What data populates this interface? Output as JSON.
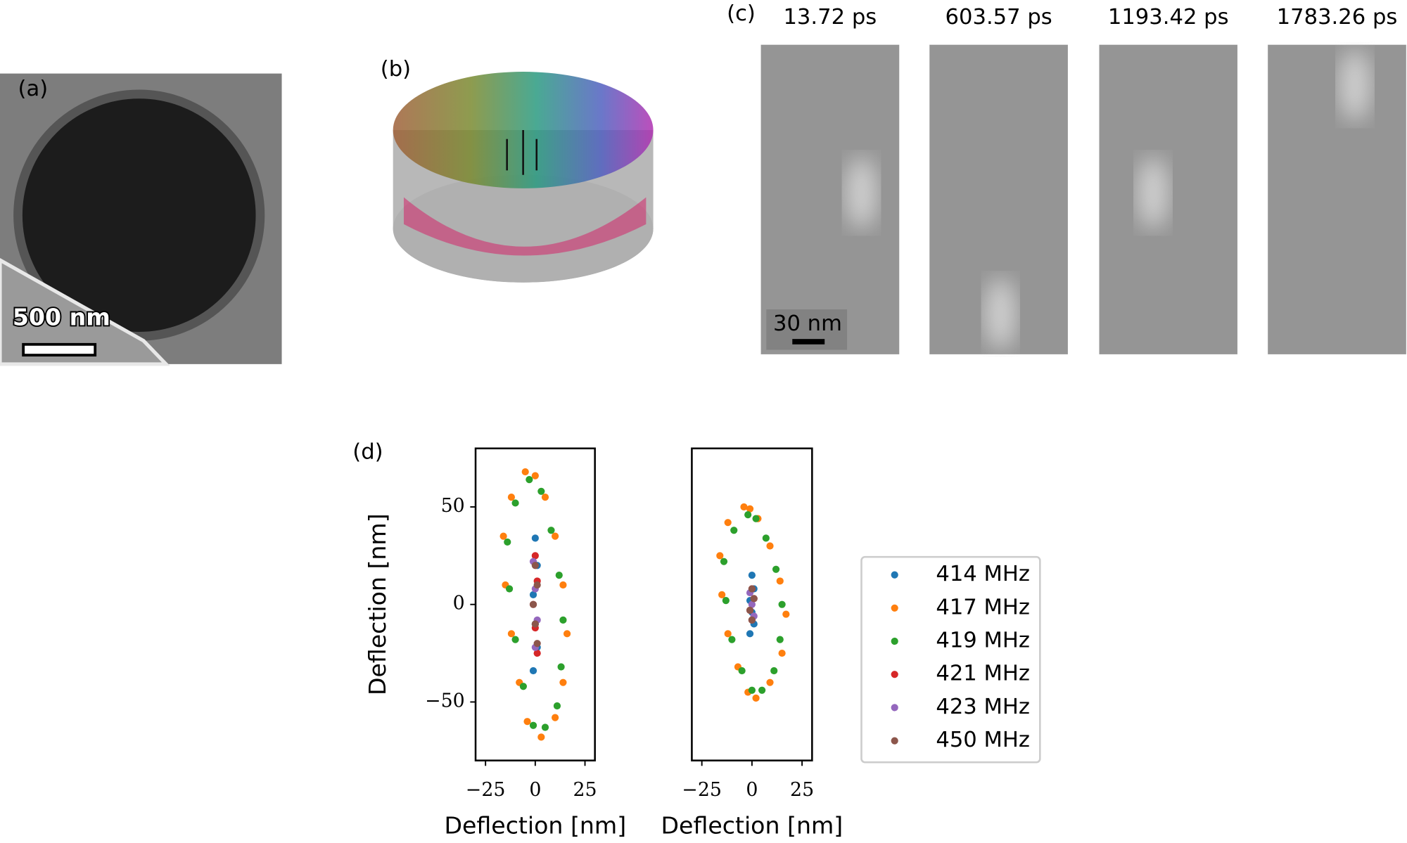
{
  "panels": {
    "a": {
      "label": "(a)",
      "scale_bar": "500 nm"
    },
    "b": {
      "label": "(b)"
    },
    "c": {
      "label": "(c)",
      "times": [
        "13.72 ps",
        "603.57 ps",
        "1193.42 ps",
        "1783.26 ps"
      ],
      "scale_bar": "30 nm"
    },
    "d": {
      "label": "(d)"
    }
  },
  "chart_data": [
    {
      "type": "scatter",
      "xlabel": "Deflection [nm]",
      "ylabel": "Deflection [nm]",
      "xlim": [
        -30,
        30
      ],
      "ylim": [
        -80,
        80
      ],
      "xticks": [
        {
          "value": -25,
          "label": "−25"
        },
        0,
        25
      ],
      "yticks": [
        {
          "value": -50,
          "label": "−50"
        },
        0,
        50
      ],
      "series": [
        {
          "color": "#ff7f0e",
          "x": [
            -5,
            -12,
            -16,
            -15,
            -12,
            -8,
            -4,
            3,
            10,
            14,
            16,
            14,
            10,
            5,
            0
          ],
          "values": [
            68,
            55,
            35,
            10,
            -15,
            -40,
            -60,
            -68,
            -58,
            -40,
            -15,
            10,
            35,
            55,
            66
          ]
        },
        {
          "color": "#2ca02c",
          "x": [
            -3,
            -10,
            -14,
            -13,
            -10,
            -6,
            -1,
            5,
            11,
            13,
            14,
            12,
            8,
            3
          ],
          "values": [
            64,
            52,
            32,
            8,
            -18,
            -42,
            -62,
            -63,
            -52,
            -32,
            -8,
            15,
            38,
            58
          ]
        },
        {
          "color": "#1f77b4",
          "x": [
            0,
            1,
            -1,
            0,
            1,
            -1
          ],
          "values": [
            34,
            20,
            5,
            -10,
            -22,
            -34
          ]
        },
        {
          "color": "#d62728",
          "x": [
            0,
            1,
            -1,
            0,
            1
          ],
          "values": [
            25,
            12,
            0,
            -12,
            -25
          ]
        },
        {
          "color": "#9467bd",
          "x": [
            -1,
            0,
            1,
            0
          ],
          "values": [
            22,
            8,
            -8,
            -22
          ]
        },
        {
          "color": "#8c564b",
          "x": [
            0,
            1,
            -1,
            0,
            1
          ],
          "values": [
            20,
            10,
            0,
            -10,
            -20
          ]
        }
      ]
    },
    {
      "type": "scatter",
      "xlabel": "Deflection [nm]",
      "xlim": [
        -30,
        30
      ],
      "ylim": [
        -80,
        80
      ],
      "xticks": [
        {
          "value": -25,
          "label": "−25"
        },
        0,
        25
      ],
      "series": [
        {
          "name": "414 MHz",
          "color": "#1f77b4",
          "x": [
            0,
            1,
            -1,
            0,
            1,
            -1
          ],
          "values": [
            15,
            8,
            2,
            -4,
            -10,
            -15
          ]
        },
        {
          "name": "417 MHz",
          "color": "#ff7f0e",
          "x": [
            -4,
            -12,
            -16,
            -15,
            -12,
            -7,
            -2,
            2,
            9,
            15,
            17,
            14,
            9,
            3,
            -1
          ],
          "values": [
            50,
            42,
            25,
            5,
            -15,
            -32,
            -45,
            -48,
            -40,
            -25,
            -5,
            12,
            30,
            44,
            49
          ]
        },
        {
          "name": "419 MHz",
          "color": "#2ca02c",
          "x": [
            -2,
            -9,
            -14,
            -13,
            -10,
            -5,
            0,
            5,
            11,
            14,
            15,
            12,
            7,
            2
          ],
          "values": [
            46,
            38,
            22,
            2,
            -18,
            -34,
            -44,
            -44,
            -34,
            -18,
            0,
            18,
            34,
            44
          ]
        },
        {
          "name": "421 MHz",
          "color": "#d62728",
          "x": [
            0,
            1,
            -1,
            0
          ],
          "values": [
            8,
            3,
            -3,
            -8
          ]
        },
        {
          "name": "423 MHz",
          "color": "#9467bd",
          "x": [
            -1,
            0,
            1
          ],
          "values": [
            6,
            0,
            -6
          ]
        },
        {
          "name": "450 MHz",
          "color": "#8c564b",
          "x": [
            0,
            1,
            -1,
            0
          ],
          "values": [
            8,
            3,
            -3,
            -8
          ]
        }
      ]
    }
  ]
}
